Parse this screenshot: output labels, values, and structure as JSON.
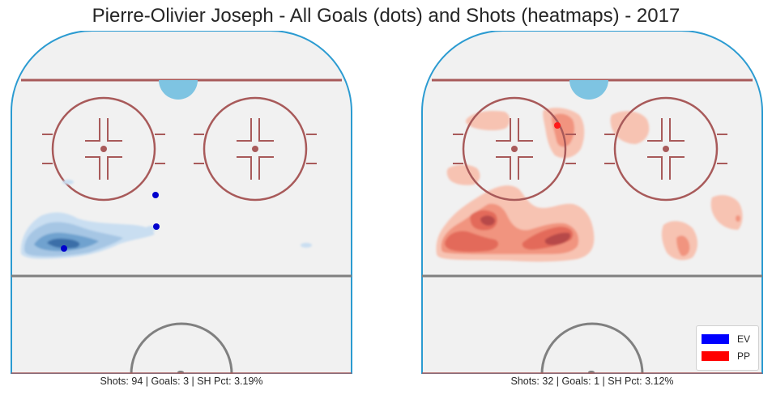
{
  "title": "Pierre-Olivier Joseph - All Goals (dots) and Shots (heatmaps) - 2017",
  "colors": {
    "ev": "#0000ff",
    "pp": "#ff0000",
    "ice": "#f1f1f1",
    "boards": "#2b9bd1",
    "red_line": "#a85a5a",
    "center_line": "#808080",
    "crease": "#7ec4e2"
  },
  "legend": {
    "items": [
      {
        "label": "EV",
        "color": "#0000ff"
      },
      {
        "label": "PP",
        "color": "#ff0000"
      }
    ],
    "placement": "bottom-right"
  },
  "chart_data": [
    {
      "type": "heatmap",
      "panel": "left",
      "series_label": "EV",
      "caption": "Shots: 94 | Goals: 3 | SH Pct: 3.19%",
      "stats": {
        "shots": 94,
        "goals": 3,
        "sh_pct": "3.19%"
      },
      "goals": [
        {
          "x": -54,
          "y": 58
        },
        {
          "x": -54,
          "y": 68
        },
        {
          "x": -82,
          "y": 61
        }
      ],
      "density": [
        {
          "x": -76,
          "y": 60,
          "level": 4
        },
        {
          "x": -70,
          "y": 62,
          "level": 3
        },
        {
          "x": -64,
          "y": 64,
          "level": 2
        },
        {
          "x": -60,
          "y": 66,
          "level": 1
        },
        {
          "x": -40,
          "y": 60,
          "level": 1
        }
      ]
    },
    {
      "type": "heatmap",
      "panel": "right",
      "series_label": "PP",
      "caption": "Shots: 32 | Goals: 1 | SH Pct: 3.12%",
      "stats": {
        "shots": 32,
        "goals": 1,
        "sh_pct": "3.12%"
      },
      "goals": [
        {
          "x": -69,
          "y": 25
        }
      ],
      "density": [
        {
          "x": -74,
          "y": 62,
          "level": 4
        },
        {
          "x": -69,
          "y": 61,
          "level": 4
        },
        {
          "x": -76,
          "y": 60,
          "level": 3
        },
        {
          "x": -68,
          "y": 25,
          "level": 3
        },
        {
          "x": -80,
          "y": 30,
          "level": 1
        },
        {
          "x": -60,
          "y": 30,
          "level": 1
        },
        {
          "x": -82,
          "y": 40,
          "level": 1
        },
        {
          "x": -46,
          "y": 58,
          "level": 1
        },
        {
          "x": -48,
          "y": 56,
          "level": 1
        }
      ]
    }
  ]
}
